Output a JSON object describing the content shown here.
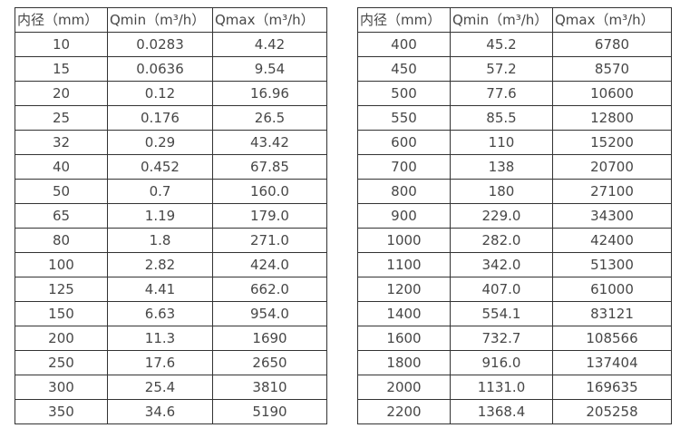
{
  "colors": {
    "border": "#333333",
    "text": "#474747",
    "background": "#ffffff"
  },
  "chart_data": [
    {
      "type": "table",
      "title": "",
      "columns": [
        "内径（mm）",
        "Qmin（m³/h）",
        "Qmax（m³/h）"
      ],
      "rows": [
        [
          "10",
          "0.0283",
          "4.42"
        ],
        [
          "15",
          "0.0636",
          "9.54"
        ],
        [
          "20",
          "0.12",
          "16.96"
        ],
        [
          "25",
          "0.176",
          "26.5"
        ],
        [
          "32",
          "0.29",
          "43.42"
        ],
        [
          "40",
          "0.452",
          "67.85"
        ],
        [
          "50",
          "0.7",
          "160.0"
        ],
        [
          "65",
          "1.19",
          "179.0"
        ],
        [
          "80",
          "1.8",
          "271.0"
        ],
        [
          "100",
          "2.82",
          "424.0"
        ],
        [
          "125",
          "4.41",
          "662.0"
        ],
        [
          "150",
          "6.63",
          "954.0"
        ],
        [
          "200",
          "11.3",
          "1690"
        ],
        [
          "250",
          "17.6",
          "2650"
        ],
        [
          "300",
          "25.4",
          "3810"
        ],
        [
          "350",
          "34.6",
          "5190"
        ]
      ]
    },
    {
      "type": "table",
      "title": "",
      "columns": [
        "内径（mm）",
        "Qmin（m³/h）",
        "Qmax（m³/h）"
      ],
      "rows": [
        [
          "400",
          "45.2",
          "6780"
        ],
        [
          "450",
          "57.2",
          "8570"
        ],
        [
          "500",
          "77.6",
          "10600"
        ],
        [
          "550",
          "85.5",
          "12800"
        ],
        [
          "600",
          "110",
          "15200"
        ],
        [
          "700",
          "138",
          "20700"
        ],
        [
          "800",
          "180",
          "27100"
        ],
        [
          "900",
          "229.0",
          "34300"
        ],
        [
          "1000",
          "282.0",
          "42400"
        ],
        [
          "1100",
          "342.0",
          "51300"
        ],
        [
          "1200",
          "407.0",
          "61000"
        ],
        [
          "1400",
          "554.1",
          "83121"
        ],
        [
          "1600",
          "732.7",
          "108566"
        ],
        [
          "1800",
          "916.0",
          "137404"
        ],
        [
          "2000",
          "1131.0",
          "169635"
        ],
        [
          "2200",
          "1368.4",
          "205258"
        ]
      ]
    }
  ]
}
